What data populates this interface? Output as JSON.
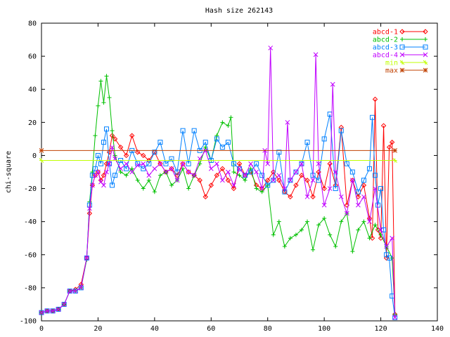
{
  "chart_data": {
    "type": "line",
    "title": "Hash size 262143",
    "xlabel": "",
    "ylabel": "chi-square",
    "xlim": [
      0,
      140
    ],
    "ylim": [
      -100,
      80
    ],
    "x_ticks": [
      "0",
      "20",
      "40",
      "60",
      "80",
      "100",
      "120",
      "140"
    ],
    "y_ticks": [
      "-100",
      "-80",
      "-60",
      "-40",
      "-20",
      "0",
      "20",
      "40",
      "60",
      "80"
    ],
    "legend_position": "top-right",
    "grid": false,
    "series": [
      {
        "name": "abcd-1",
        "color": "#ff0000",
        "marker": "diamond",
        "x": [
          0,
          2,
          4,
          6,
          8,
          10,
          12,
          14,
          16,
          17,
          18,
          19,
          20,
          21,
          22,
          23,
          24,
          25,
          26,
          28,
          30,
          32,
          34,
          36,
          38,
          40,
          42,
          44,
          46,
          48,
          50,
          52,
          54,
          56,
          58,
          60,
          62,
          64,
          66,
          68,
          70,
          72,
          74,
          76,
          78,
          80,
          82,
          84,
          86,
          88,
          90,
          92,
          94,
          96,
          98,
          100,
          102,
          104,
          106,
          108,
          110,
          112,
          114,
          116,
          117,
          118,
          119,
          120,
          121,
          122,
          123,
          124,
          125
        ],
        "y": [
          -95,
          -94,
          -94,
          -93,
          -90,
          -82,
          -81,
          -78,
          -62,
          -35,
          -18,
          -12,
          -10,
          -15,
          -12,
          -5,
          2,
          12,
          10,
          5,
          0,
          12,
          2,
          0,
          -3,
          2,
          -5,
          -10,
          -8,
          -12,
          -5,
          -10,
          -12,
          -15,
          -25,
          -18,
          -12,
          -8,
          -15,
          -20,
          -5,
          -12,
          -10,
          -18,
          -20,
          -15,
          -10,
          -15,
          -22,
          -25,
          -18,
          -12,
          -15,
          -25,
          -10,
          -20,
          -5,
          -18,
          17,
          -30,
          -15,
          -25,
          -18,
          -38,
          -50,
          34,
          -45,
          -50,
          18,
          -62,
          5,
          8,
          -96
        ]
      },
      {
        "name": "abcd-2",
        "color": "#00c000",
        "marker": "plus",
        "x": [
          0,
          2,
          4,
          6,
          8,
          10,
          12,
          14,
          16,
          17,
          18,
          19,
          20,
          21,
          22,
          23,
          24,
          25,
          26,
          28,
          30,
          32,
          34,
          36,
          38,
          40,
          42,
          44,
          46,
          48,
          50,
          52,
          54,
          56,
          58,
          60,
          62,
          64,
          66,
          67,
          68,
          70,
          72,
          74,
          76,
          78,
          80,
          82,
          84,
          86,
          88,
          90,
          92,
          94,
          96,
          98,
          100,
          102,
          104,
          106,
          108,
          110,
          112,
          114,
          116,
          118,
          120,
          122,
          124,
          125
        ],
        "y": [
          -95,
          -94,
          -94,
          -93,
          -90,
          -82,
          -82,
          -80,
          -63,
          -28,
          -10,
          12,
          30,
          45,
          32,
          48,
          35,
          15,
          0,
          -10,
          -12,
          -8,
          -15,
          -20,
          -15,
          -22,
          -12,
          -10,
          -18,
          -15,
          -8,
          -20,
          -12,
          -5,
          5,
          -3,
          12,
          20,
          18,
          23,
          -10,
          -12,
          -15,
          -8,
          -20,
          -22,
          -18,
          -48,
          -40,
          -55,
          -50,
          -48,
          -45,
          -40,
          -57,
          -42,
          -38,
          -48,
          -55,
          -40,
          -35,
          -58,
          -45,
          -40,
          -50,
          -42,
          -48,
          -55,
          -62,
          -96
        ]
      },
      {
        "name": "abcd-3",
        "color": "#0080ff",
        "marker": "square",
        "x": [
          0,
          2,
          4,
          6,
          8,
          10,
          12,
          14,
          16,
          17,
          18,
          19,
          20,
          21,
          22,
          23,
          24,
          25,
          26,
          28,
          30,
          32,
          34,
          36,
          38,
          40,
          42,
          44,
          46,
          48,
          50,
          52,
          54,
          56,
          58,
          60,
          62,
          64,
          66,
          68,
          70,
          72,
          74,
          76,
          78,
          80,
          82,
          84,
          86,
          88,
          90,
          92,
          94,
          96,
          98,
          100,
          102,
          104,
          106,
          108,
          110,
          112,
          114,
          116,
          117,
          118,
          119,
          120,
          121,
          122,
          123,
          124,
          125
        ],
        "y": [
          -95,
          -94,
          -94,
          -93,
          -90,
          -82,
          -82,
          -80,
          -62,
          -30,
          -12,
          -8,
          0,
          -5,
          8,
          16,
          -5,
          -18,
          -12,
          -3,
          -8,
          3,
          -5,
          -8,
          -5,
          2,
          8,
          -5,
          -2,
          -10,
          15,
          -5,
          15,
          3,
          8,
          -3,
          10,
          5,
          8,
          -5,
          -8,
          -12,
          -10,
          -5,
          -12,
          -18,
          -15,
          2,
          -22,
          -15,
          -10,
          -5,
          8,
          -12,
          -15,
          10,
          25,
          -20,
          15,
          -5,
          -10,
          -22,
          -15,
          -8,
          23,
          -12,
          -30,
          -20,
          -45,
          -60,
          -62,
          -85,
          -98
        ]
      },
      {
        "name": "abcd-4",
        "color": "#c000ff",
        "marker": "cross",
        "x": [
          0,
          2,
          4,
          6,
          8,
          10,
          12,
          14,
          16,
          17,
          18,
          19,
          20,
          21,
          22,
          23,
          24,
          25,
          26,
          28,
          30,
          32,
          34,
          36,
          38,
          40,
          42,
          44,
          46,
          48,
          50,
          52,
          54,
          56,
          58,
          60,
          62,
          64,
          66,
          68,
          70,
          72,
          74,
          76,
          78,
          79,
          80,
          81,
          82,
          84,
          86,
          87,
          88,
          90,
          92,
          94,
          96,
          97,
          98,
          100,
          102,
          103,
          104,
          106,
          108,
          110,
          112,
          114,
          116,
          118,
          120,
          122,
          124,
          125
        ],
        "y": [
          -95,
          -94,
          -94,
          -93,
          -90,
          -82,
          -82,
          -80,
          -62,
          -32,
          -18,
          -12,
          -10,
          -16,
          -18,
          -10,
          -5,
          5,
          -2,
          -8,
          -5,
          -10,
          -6,
          -5,
          -12,
          -8,
          -5,
          -10,
          -8,
          -15,
          -5,
          -10,
          -12,
          -2,
          3,
          -8,
          -5,
          -15,
          -10,
          -18,
          -8,
          -12,
          -5,
          -10,
          -20,
          3,
          -5,
          65,
          -15,
          -12,
          -20,
          20,
          -15,
          -10,
          -5,
          -25,
          -15,
          61,
          -5,
          -30,
          -20,
          43,
          -10,
          -25,
          -35,
          -15,
          -30,
          -25,
          -40,
          -20,
          -45,
          -55,
          -50,
          -98
        ]
      },
      {
        "name": "min",
        "color": "#c0ff00",
        "marker": "star",
        "x": [
          0,
          125
        ],
        "y": [
          -3,
          -3
        ]
      },
      {
        "name": "max",
        "color": "#c04000",
        "marker": "asterisk",
        "x": [
          0,
          125
        ],
        "y": [
          3,
          3
        ]
      }
    ]
  }
}
